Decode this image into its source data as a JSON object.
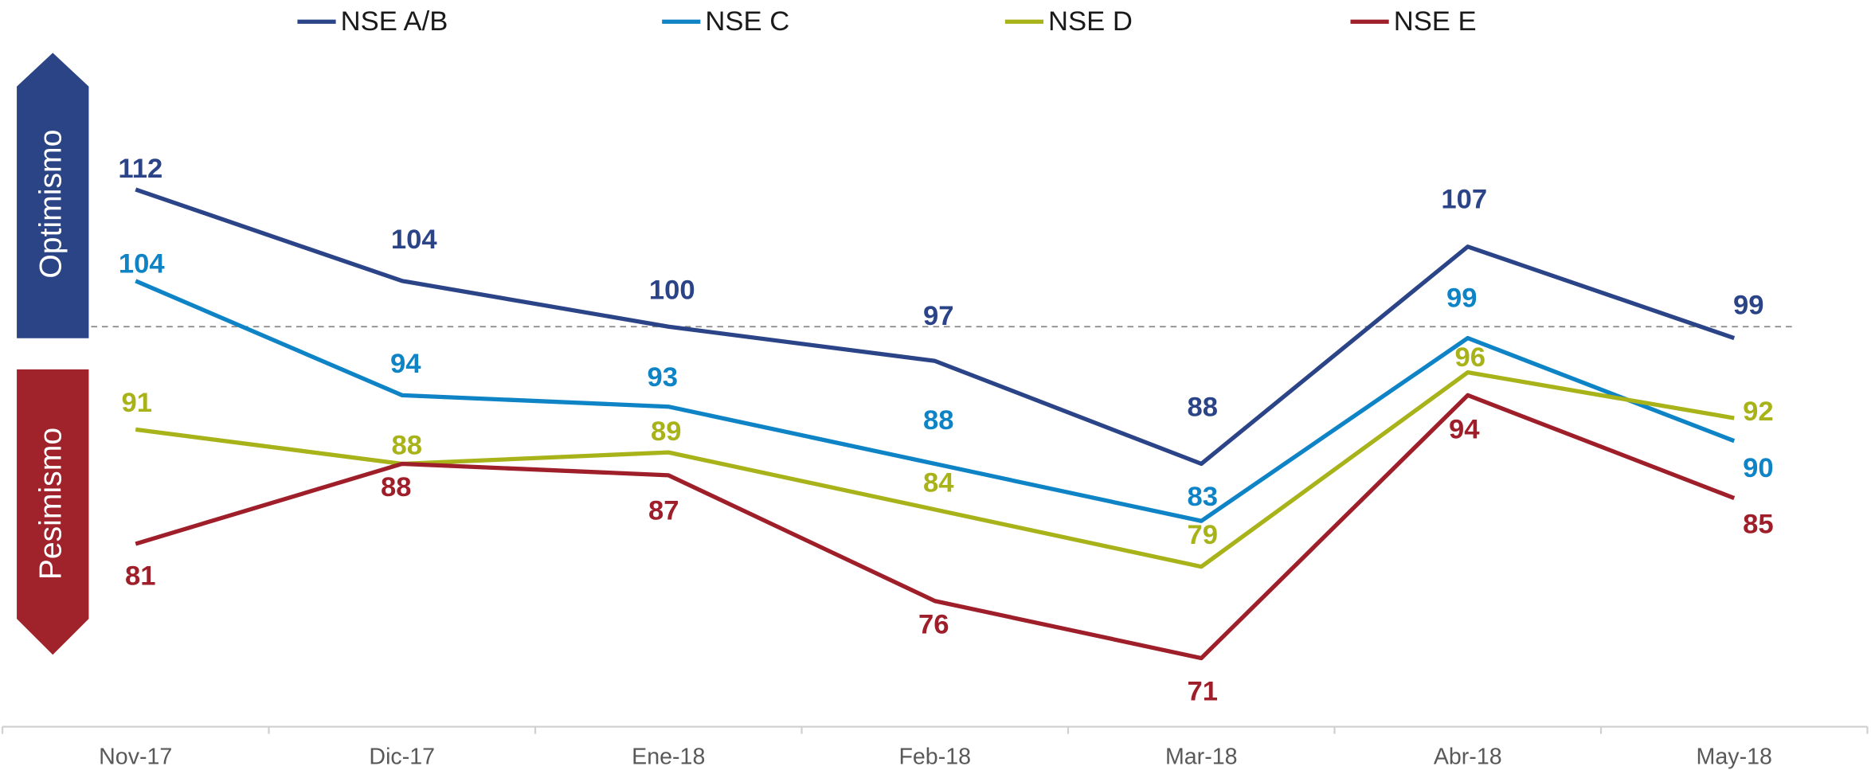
{
  "chart_data": {
    "type": "line",
    "categories": [
      "Nov-17",
      "Dic-17",
      "Ene-18",
      "Feb-18",
      "Mar-18",
      "Abr-18",
      "May-18"
    ],
    "series": [
      {
        "name": "NSE A/B",
        "color": "#2b4488",
        "values": [
          112,
          104,
          100,
          97,
          88,
          107,
          99
        ]
      },
      {
        "name": "NSE C",
        "color": "#0e84c6",
        "values": [
          104,
          94,
          93,
          88,
          83,
          99,
          90
        ]
      },
      {
        "name": "NSE D",
        "color": "#a8b219",
        "values": [
          91,
          88,
          89,
          84,
          79,
          96,
          92
        ]
      },
      {
        "name": "NSE E",
        "color": "#9e1f2a",
        "values": [
          81,
          88,
          87,
          76,
          71,
          94,
          85
        ]
      }
    ],
    "ylim": [
      65,
      125
    ],
    "reference_line": 100,
    "legend": "top",
    "zones": [
      {
        "label": "Optimismo",
        "color": "#2a4486"
      },
      {
        "label": "Pesimismo",
        "color": "#a0222a"
      }
    ]
  }
}
